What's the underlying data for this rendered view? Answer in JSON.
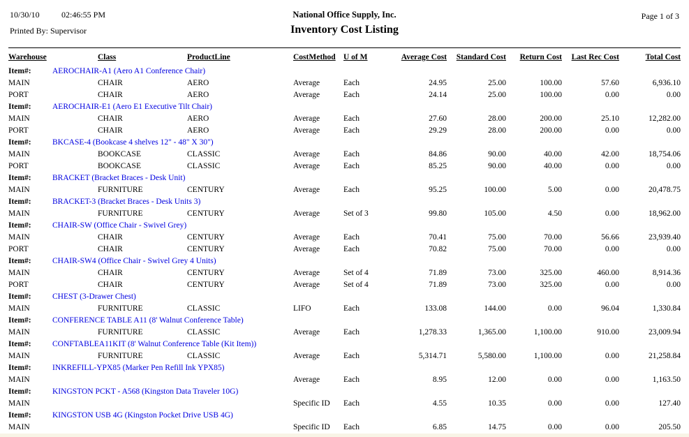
{
  "report": {
    "date": "10/30/10",
    "time": "02:46:55 PM",
    "printed_by": "Printed By: Supervisor",
    "company": "National Office Supply, Inc.",
    "title": "Inventory Cost Listing",
    "page": "Page 1 of 3"
  },
  "colors": {
    "item_link_blue": "#0000e0",
    "text": "#000000",
    "bottom_strip": "#f8f4e6"
  },
  "table": {
    "item_label": "Item#:",
    "columns": [
      "Warehouse",
      "Class",
      "ProductLine",
      "CostMethod",
      "U of M",
      "Average Cost",
      "Standard Cost",
      "Return Cost",
      "Last Rec Cost",
      "Total Cost"
    ],
    "column_keys": [
      "warehouse",
      "class",
      "productline",
      "costmethod",
      "uofm",
      "average-cost",
      "standard-cost",
      "return-cost",
      "lastrec-cost",
      "total-cost"
    ],
    "groups": [
      {
        "item": "AEROCHAIR-A1 (Aero A1 Conference Chair)",
        "rows": [
          [
            "MAIN",
            "CHAIR",
            "AERO",
            "Average",
            "Each",
            "24.95",
            "25.00",
            "100.00",
            "57.60",
            "6,936.10"
          ],
          [
            "PORT",
            "CHAIR",
            "AERO",
            "Average",
            "Each",
            "24.14",
            "25.00",
            "100.00",
            "0.00",
            "0.00"
          ]
        ]
      },
      {
        "item": "AEROCHAIR-E1 (Aero E1 Executive Tilt Chair)",
        "rows": [
          [
            "MAIN",
            "CHAIR",
            "AERO",
            "Average",
            "Each",
            "27.60",
            "28.00",
            "200.00",
            "25.10",
            "12,282.00"
          ],
          [
            "PORT",
            "CHAIR",
            "AERO",
            "Average",
            "Each",
            "29.29",
            "28.00",
            "200.00",
            "0.00",
            "0.00"
          ]
        ]
      },
      {
        "item": "BKCASE-4 (Bookcase 4 shelves 12\" - 48\" X 30\")",
        "rows": [
          [
            "MAIN",
            "BOOKCASE",
            "CLASSIC",
            "Average",
            "Each",
            "84.86",
            "90.00",
            "40.00",
            "42.00",
            "18,754.06"
          ],
          [
            "PORT",
            "BOOKCASE",
            "CLASSIC",
            "Average",
            "Each",
            "85.25",
            "90.00",
            "40.00",
            "0.00",
            "0.00"
          ]
        ]
      },
      {
        "item": "BRACKET (Bracket Braces - Desk Unit)",
        "rows": [
          [
            "MAIN",
            "FURNITURE",
            "CENTURY",
            "Average",
            "Each",
            "95.25",
            "100.00",
            "5.00",
            "0.00",
            "20,478.75"
          ]
        ]
      },
      {
        "item": "BRACKET-3 (Bracket Braces - Desk Units 3)",
        "rows": [
          [
            "MAIN",
            "FURNITURE",
            "CENTURY",
            "Average",
            "Set of 3",
            "99.80",
            "105.00",
            "4.50",
            "0.00",
            "18,962.00"
          ]
        ]
      },
      {
        "item": "CHAIR-SW (Office Chair - Swivel Grey)",
        "rows": [
          [
            "MAIN",
            "CHAIR",
            "CENTURY",
            "Average",
            "Each",
            "70.41",
            "75.00",
            "70.00",
            "56.66",
            "23,939.40"
          ],
          [
            "PORT",
            "CHAIR",
            "CENTURY",
            "Average",
            "Each",
            "70.82",
            "75.00",
            "70.00",
            "0.00",
            "0.00"
          ]
        ]
      },
      {
        "item": "CHAIR-SW4 (Office Chair - Swivel Grey 4 Units)",
        "rows": [
          [
            "MAIN",
            "CHAIR",
            "CENTURY",
            "Average",
            "Set of 4",
            "71.89",
            "73.00",
            "325.00",
            "460.00",
            "8,914.36"
          ],
          [
            "PORT",
            "CHAIR",
            "CENTURY",
            "Average",
            "Set of 4",
            "71.89",
            "73.00",
            "325.00",
            "0.00",
            "0.00"
          ]
        ]
      },
      {
        "item": "CHEST (3-Drawer Chest)",
        "rows": [
          [
            "MAIN",
            "FURNITURE",
            "CLASSIC",
            "LIFO",
            "Each",
            "133.08",
            "144.00",
            "0.00",
            "96.04",
            "1,330.84"
          ]
        ]
      },
      {
        "item": "CONFERENCE TABLE A11 (8' Walnut Conference Table)",
        "rows": [
          [
            "MAIN",
            "FURNITURE",
            "CLASSIC",
            "Average",
            "Each",
            "1,278.33",
            "1,365.00",
            "1,100.00",
            "910.00",
            "23,009.94"
          ]
        ]
      },
      {
        "item": "CONFTABLEA11KIT (8' Walnut Conference Table (Kit Item))",
        "rows": [
          [
            "MAIN",
            "FURNITURE",
            "CLASSIC",
            "Average",
            "Each",
            "5,314.71",
            "5,580.00",
            "1,100.00",
            "0.00",
            "21,258.84"
          ]
        ]
      },
      {
        "item": "INKREFILL-YPX85 (Marker Pen Refill Ink YPX85)",
        "rows": [
          [
            "MAIN",
            "",
            "",
            "Average",
            "Each",
            "8.95",
            "12.00",
            "0.00",
            "0.00",
            "1,163.50"
          ]
        ]
      },
      {
        "item": "KINGSTON PCKT - A568 (Kingston Data Traveler 10G)",
        "rows": [
          [
            "MAIN",
            "",
            "",
            "Specific ID",
            "Each",
            "4.55",
            "10.35",
            "0.00",
            "0.00",
            "127.40"
          ]
        ]
      },
      {
        "item": "KINGSTON USB 4G (Kingston Pocket Drive USB 4G)",
        "rows": [
          [
            "MAIN",
            "",
            "",
            "Specific ID",
            "Each",
            "6.85",
            "14.75",
            "0.00",
            "0.00",
            "205.50"
          ]
        ]
      }
    ]
  }
}
